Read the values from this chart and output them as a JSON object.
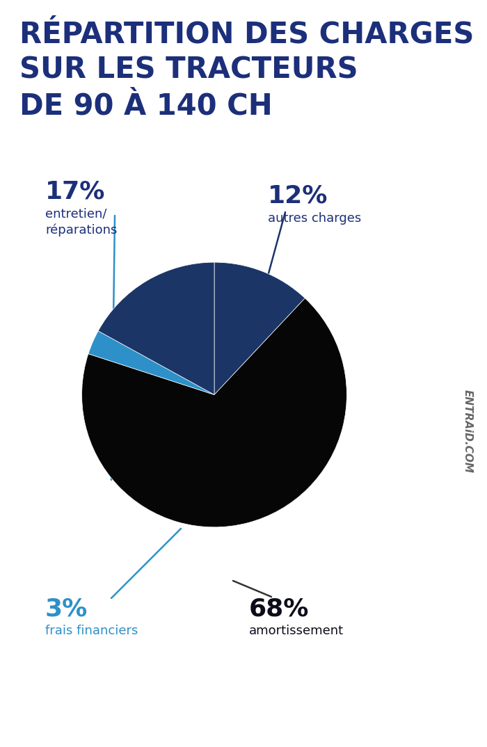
{
  "title_line1": "RÉPARTITION DES CHARGES",
  "title_line2": "SUR LES TRACTEURS",
  "title_line3": "DE 90 À 140 CH",
  "title_color": "#1c2f7a",
  "background_color": "#ffffff",
  "slice_sizes": [
    68,
    17,
    12,
    3
  ],
  "slice_colors": [
    "#060606",
    "#1b3566",
    "#1b3566",
    "#2e90c8"
  ],
  "slice_labels": [
    "amortissement",
    "entretien/\nréparations",
    "autres charges",
    "frais financiers"
  ],
  "pct_labels": [
    "68%",
    "17%",
    "12%",
    "3%"
  ],
  "pct_colors": [
    "#0d0d1a",
    "#1c2f7a",
    "#1c2f7a",
    "#2e90c8"
  ],
  "label_colors": [
    "#0d0d1a",
    "#1c2f7a",
    "#1c2f7a",
    "#2e90c8"
  ],
  "watermark": "ENTRAiD.COM",
  "watermark_color": "#666666",
  "line_color": "#2e90c8"
}
